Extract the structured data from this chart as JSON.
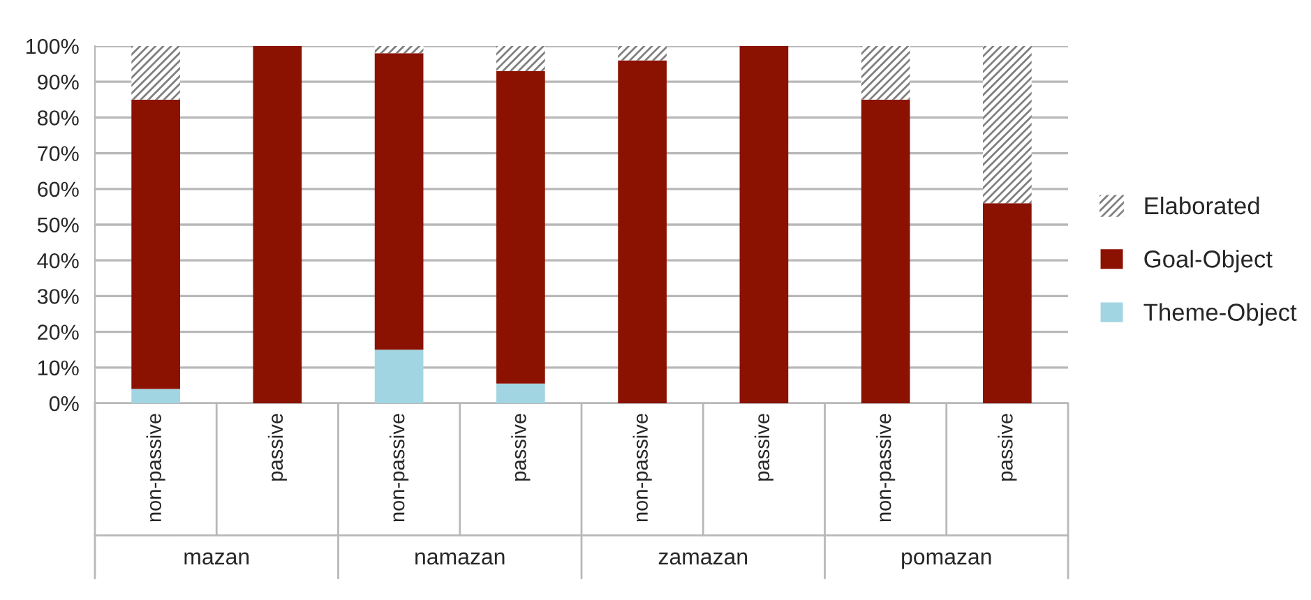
{
  "chart_data": {
    "type": "bar",
    "stacked": true,
    "categories": [
      "non-passive",
      "passive",
      "non-passive",
      "passive",
      "non-passive",
      "passive",
      "non-passive",
      "passive"
    ],
    "series": [
      {
        "name": "Theme-Object",
        "color": "#a2d5e2",
        "values": [
          4,
          0,
          15,
          5.5,
          0,
          0,
          0,
          0
        ]
      },
      {
        "name": "Goal-Object",
        "color": "#8b1100",
        "values": [
          81,
          100,
          83,
          87.5,
          96,
          100,
          85,
          56
        ]
      },
      {
        "name": "Elaborated",
        "color": "#808080",
        "values": [
          15,
          0,
          2,
          7,
          4,
          0,
          15,
          44
        ]
      }
    ],
    "annotations": [
      "mazan",
      "namazan",
      "zamazan",
      "pomazan"
    ],
    "ylim": [
      0,
      100
    ],
    "yticks": [
      {
        "value": 0,
        "label": "0%"
      },
      {
        "value": 10,
        "label": "10%"
      },
      {
        "value": 20,
        "label": "20%"
      },
      {
        "value": 30,
        "label": "30%"
      },
      {
        "value": 40,
        "label": "40%"
      },
      {
        "value": 50,
        "label": "50%"
      },
      {
        "value": 60,
        "label": "60%"
      },
      {
        "value": 70,
        "label": "70%"
      },
      {
        "value": 80,
        "label": "80%"
      },
      {
        "value": 90,
        "label": "90%"
      },
      {
        "value": 100,
        "label": "100%"
      }
    ],
    "grid": "y",
    "legend": "right"
  }
}
